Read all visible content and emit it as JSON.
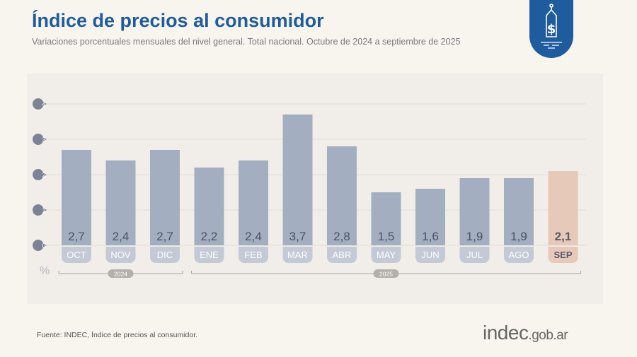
{
  "header": {
    "title": "Índice de precios al consumidor",
    "subtitle": "Variaciones porcentuales mensuales del nivel general. Total nacional. Octubre de 2024 a septiembre de 2025"
  },
  "badge_icon": "price-tag-dollar-icon",
  "footer": {
    "source": "Fuente: INDEC, Índice de precios al consumidor.",
    "logo_main": "indec",
    "logo_suffix": ".gob.ar"
  },
  "colors": {
    "bar": "#a3afc0",
    "highlight_bar": "#e6c9b8",
    "tick_bubble": "#7d8295",
    "title": "#1f5c9e"
  },
  "chart_data": {
    "type": "bar",
    "title": "",
    "xlabel": "",
    "ylabel": "%",
    "ylim": [
      0,
      4
    ],
    "yticks": [
      0,
      1,
      2,
      3,
      4
    ],
    "grid": true,
    "categories": [
      "OCT",
      "NOV",
      "DIC",
      "ENE",
      "FEB",
      "MAR",
      "ABR",
      "MAY",
      "JUN",
      "JUL",
      "AGO",
      "SEP"
    ],
    "values": [
      2.7,
      2.4,
      2.7,
      2.2,
      2.4,
      3.7,
      2.8,
      1.5,
      1.6,
      1.9,
      1.9,
      2.1
    ],
    "data_labels": [
      "2,7",
      "2,4",
      "2,7",
      "2,2",
      "2,4",
      "3,7",
      "2,8",
      "1,5",
      "1,6",
      "1,9",
      "1,9",
      "2,1"
    ],
    "highlight": "SEP",
    "year_groups": [
      {
        "label": "2024",
        "from": 0,
        "to": 2
      },
      {
        "label": "2025",
        "from": 3,
        "to": 11
      }
    ]
  }
}
